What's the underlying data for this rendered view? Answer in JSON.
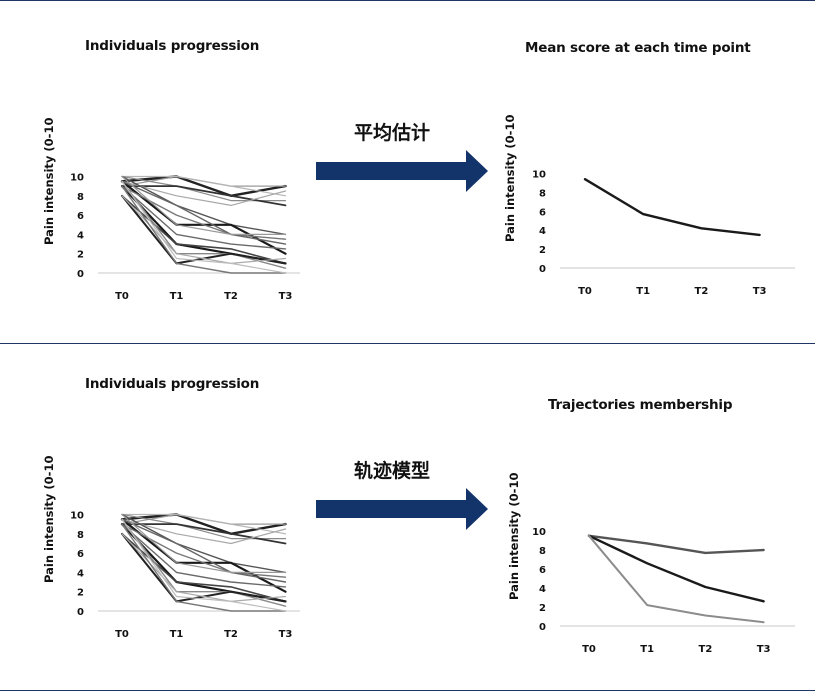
{
  "page": {
    "top_arrow_label": "平均估计",
    "bottom_arrow_label": "轨迹模型",
    "arrow_color": "#13336b",
    "rule_color": "#1f3566"
  },
  "chart_data": [
    {
      "id": "individuals-top",
      "type": "line",
      "title": "Individuals progression",
      "ylabel": "Pain intensity (0-10",
      "xlabel": "",
      "categories": [
        "T0",
        "T1",
        "T2",
        "T3"
      ],
      "yticks": [
        0,
        2,
        4,
        6,
        8,
        10
      ],
      "ylim": [
        0,
        10
      ],
      "grid": false,
      "series": [
        {
          "values": [
            9.5,
            10,
            8,
            9
          ],
          "color": "#222222",
          "width": 2.4
        },
        {
          "values": [
            9,
            10,
            9,
            9
          ],
          "color": "#9a9a9a",
          "width": 1.2
        },
        {
          "values": [
            10,
            10,
            9,
            8
          ],
          "color": "#b5b5b5",
          "width": 1.2
        },
        {
          "values": [
            10,
            9,
            7.5,
            7.5
          ],
          "color": "#8a8a8a",
          "width": 1.2
        },
        {
          "values": [
            9,
            9,
            8,
            7
          ],
          "color": "#333333",
          "width": 1.8
        },
        {
          "values": [
            9.5,
            8,
            7,
            8.5
          ],
          "color": "#a8a8a8",
          "width": 1.2
        },
        {
          "values": [
            10,
            7,
            5,
            4
          ],
          "color": "#555555",
          "width": 1.4
        },
        {
          "values": [
            9.5,
            5,
            5,
            2
          ],
          "color": "#1a1a1a",
          "width": 2.2
        },
        {
          "values": [
            9,
            6,
            4,
            3.5
          ],
          "color": "#777777",
          "width": 1.4
        },
        {
          "values": [
            9.5,
            7,
            4,
            3
          ],
          "color": "#666666",
          "width": 1.4
        },
        {
          "values": [
            10,
            5,
            4,
            4
          ],
          "color": "#999999",
          "width": 1.2
        },
        {
          "values": [
            9,
            3,
            2,
            1
          ],
          "color": "#1a1a1a",
          "width": 2.2
        },
        {
          "values": [
            9,
            4,
            3,
            2.5
          ],
          "color": "#6a6a6a",
          "width": 1.4
        },
        {
          "values": [
            8,
            3,
            2.5,
            1
          ],
          "color": "#444444",
          "width": 1.6
        },
        {
          "values": [
            9.5,
            2,
            2,
            0.5
          ],
          "color": "#888888",
          "width": 1.4
        },
        {
          "values": [
            8,
            1,
            2,
            1
          ],
          "color": "#222222",
          "width": 2.0
        },
        {
          "values": [
            8,
            2,
            1,
            1.5
          ],
          "color": "#aaaaaa",
          "width": 1.2
        },
        {
          "values": [
            9,
            1,
            0,
            0
          ],
          "color": "#777777",
          "width": 1.4
        },
        {
          "values": [
            9.5,
            1.5,
            1,
            0
          ],
          "color": "#bdbdbd",
          "width": 1.2
        }
      ]
    },
    {
      "id": "mean-score",
      "type": "line",
      "title": "Mean score at each time point",
      "ylabel": "Pain intensity (0-10",
      "xlabel": "",
      "categories": [
        "T0",
        "T1",
        "T2",
        "T3"
      ],
      "yticks": [
        0,
        2,
        4,
        6,
        8,
        10
      ],
      "ylim": [
        0,
        10
      ],
      "grid": false,
      "series": [
        {
          "values": [
            9.4,
            5.7,
            4.2,
            3.5
          ],
          "color": "#1a1a1a",
          "width": 2.4
        }
      ]
    },
    {
      "id": "individuals-bottom",
      "type": "line",
      "title": "Individuals progression",
      "ylabel": "Pain intensity (0-10",
      "xlabel": "",
      "categories": [
        "T0",
        "T1",
        "T2",
        "T3"
      ],
      "yticks": [
        0,
        2,
        4,
        6,
        8,
        10
      ],
      "ylim": [
        0,
        10
      ],
      "grid": false,
      "series": [
        {
          "values": [
            9.5,
            10,
            8,
            9
          ],
          "color": "#222222",
          "width": 2.4
        },
        {
          "values": [
            9,
            10,
            9,
            9
          ],
          "color": "#9a9a9a",
          "width": 1.2
        },
        {
          "values": [
            10,
            10,
            9,
            8
          ],
          "color": "#b5b5b5",
          "width": 1.2
        },
        {
          "values": [
            10,
            9,
            7.5,
            7.5
          ],
          "color": "#8a8a8a",
          "width": 1.2
        },
        {
          "values": [
            9,
            9,
            8,
            7
          ],
          "color": "#333333",
          "width": 1.8
        },
        {
          "values": [
            9.5,
            8,
            7,
            8.5
          ],
          "color": "#a8a8a8",
          "width": 1.2
        },
        {
          "values": [
            10,
            7,
            5,
            4
          ],
          "color": "#555555",
          "width": 1.4
        },
        {
          "values": [
            9.5,
            5,
            5,
            2
          ],
          "color": "#1a1a1a",
          "width": 2.2
        },
        {
          "values": [
            9,
            6,
            4,
            3.5
          ],
          "color": "#777777",
          "width": 1.4
        },
        {
          "values": [
            9.5,
            7,
            4,
            3
          ],
          "color": "#666666",
          "width": 1.4
        },
        {
          "values": [
            10,
            5,
            4,
            4
          ],
          "color": "#999999",
          "width": 1.2
        },
        {
          "values": [
            9,
            3,
            2,
            1
          ],
          "color": "#1a1a1a",
          "width": 2.2
        },
        {
          "values": [
            9,
            4,
            3,
            2.5
          ],
          "color": "#6a6a6a",
          "width": 1.4
        },
        {
          "values": [
            8,
            3,
            2.5,
            1
          ],
          "color": "#444444",
          "width": 1.6
        },
        {
          "values": [
            9.5,
            2,
            2,
            0.5
          ],
          "color": "#888888",
          "width": 1.4
        },
        {
          "values": [
            8,
            1,
            2,
            1
          ],
          "color": "#222222",
          "width": 2.0
        },
        {
          "values": [
            8,
            2,
            1,
            1.5
          ],
          "color": "#aaaaaa",
          "width": 1.2
        },
        {
          "values": [
            9,
            1,
            0,
            0
          ],
          "color": "#777777",
          "width": 1.4
        },
        {
          "values": [
            9.5,
            1.5,
            1,
            0
          ],
          "color": "#bdbdbd",
          "width": 1.2
        }
      ]
    },
    {
      "id": "trajectories",
      "type": "line",
      "title": "Trajectories membership",
      "ylabel": "Pain intensity (0-10",
      "xlabel": "",
      "categories": [
        "T0",
        "T1",
        "T2",
        "T3"
      ],
      "yticks": [
        0,
        2,
        4,
        6,
        8,
        10
      ],
      "ylim": [
        0,
        10
      ],
      "grid": false,
      "series": [
        {
          "values": [
            9.5,
            8.7,
            7.7,
            8.0
          ],
          "color": "#555555",
          "width": 2.4
        },
        {
          "values": [
            9.5,
            6.6,
            4.1,
            2.6
          ],
          "color": "#1a1a1a",
          "width": 2.4
        },
        {
          "values": [
            9.5,
            2.2,
            1.1,
            0.4
          ],
          "color": "#8c8c8c",
          "width": 2.0
        }
      ]
    }
  ]
}
